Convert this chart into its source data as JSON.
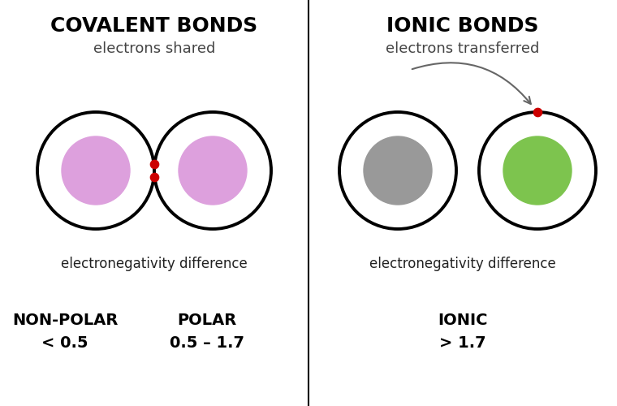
{
  "bg_color": "#ffffff",
  "left_title": "COVALENT BONDS",
  "left_subtitle": "electrons shared",
  "left_en_label": "electronegativity difference",
  "left_nonpolar_label": "NON-POLAR",
  "left_nonpolar_value": "< 0.5",
  "left_polar_label": "POLAR",
  "left_polar_value": "0.5 – 1.7",
  "right_title": "IONIC BONDS",
  "right_subtitle": "electrons transferred",
  "right_en_label": "electronegativity difference",
  "right_ionic_label": "IONIC",
  "right_ionic_value": "> 1.7",
  "cov_inner_color": "#dda0dd",
  "cov_circle_lw": 2.8,
  "cov_electron_color": "#cc0000",
  "ion_inner1_color": "#999999",
  "ion_inner2_color": "#7dc44e",
  "ion_circle_lw": 2.8,
  "ion_electron_color": "#cc0000",
  "title_fontsize": 18,
  "subtitle_fontsize": 13,
  "label_fontsize": 12,
  "bold_label_fontsize": 14,
  "value_fontsize": 14
}
